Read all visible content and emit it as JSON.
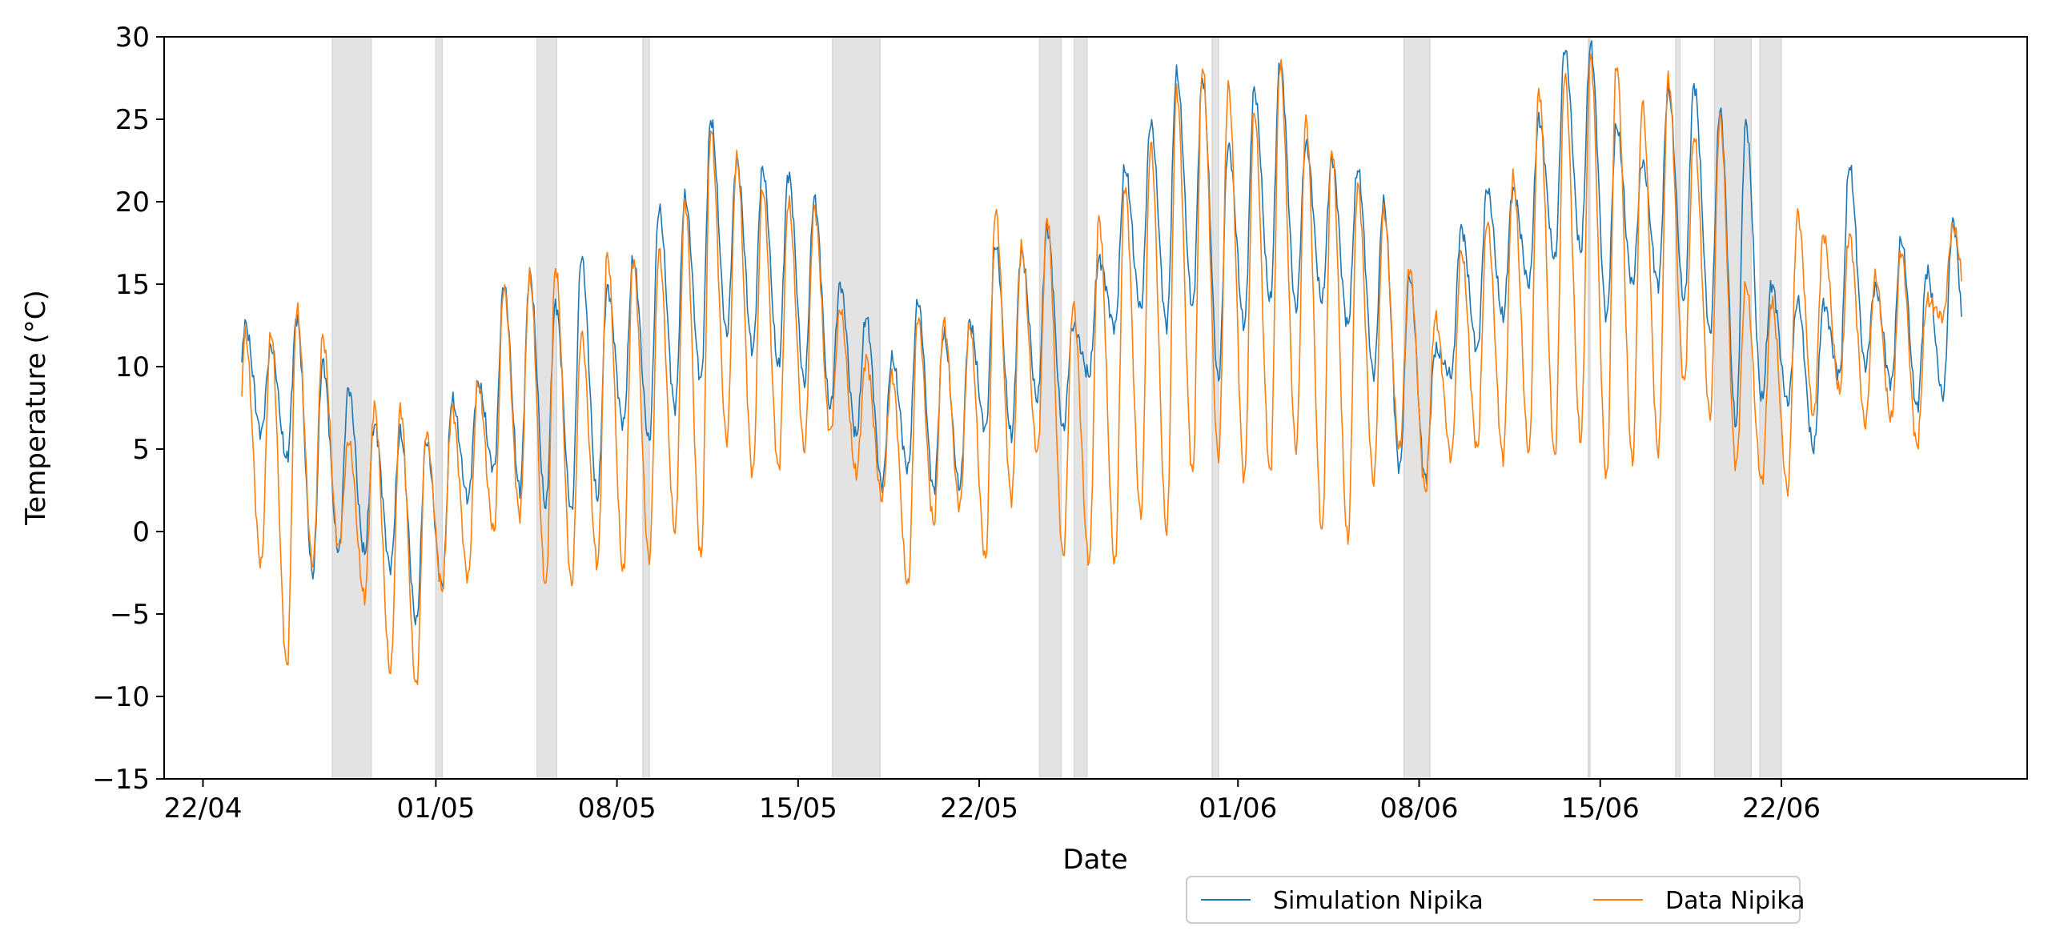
{
  "chart_data": {
    "type": "line",
    "title": "",
    "xlabel": "Date",
    "ylabel": "Temperature (°C)",
    "x_domain": [
      "2022-04-20T12:00",
      "2022-07-01T12:00"
    ],
    "ylim": [
      -15,
      30
    ],
    "y_ticks": [
      -15,
      -10,
      -5,
      0,
      5,
      10,
      15,
      20,
      25,
      30
    ],
    "x_ticks": [
      {
        "date": "2022-04-22",
        "label": "22/04"
      },
      {
        "date": "2022-05-01",
        "label": "01/05"
      },
      {
        "date": "2022-05-08",
        "label": "08/05"
      },
      {
        "date": "2022-05-15",
        "label": "15/05"
      },
      {
        "date": "2022-05-22",
        "label": "22/05"
      },
      {
        "date": "2022-06-01",
        "label": "01/06"
      },
      {
        "date": "2022-06-08",
        "label": "08/06"
      },
      {
        "date": "2022-06-15",
        "label": "15/06"
      },
      {
        "date": "2022-06-22",
        "label": "22/06"
      }
    ],
    "grid": false,
    "legend_position": "bottom-center",
    "shaded_periods": [
      [
        "2022-04-27T00:00",
        "2022-04-28T12:00"
      ],
      [
        "2022-05-01T00:00",
        "2022-05-01T06:00"
      ],
      [
        "2022-05-04T22:00",
        "2022-05-05T16:00"
      ],
      [
        "2022-05-09T00:00",
        "2022-05-09T06:00"
      ],
      [
        "2022-05-16T08:00",
        "2022-05-18T04:00"
      ],
      [
        "2022-05-24T08:00",
        "2022-05-25T04:00"
      ],
      [
        "2022-05-25T16:00",
        "2022-05-26T04:00"
      ],
      [
        "2022-05-31T00:00",
        "2022-05-31T06:00"
      ],
      [
        "2022-06-07T10:00",
        "2022-06-08T10:00"
      ],
      [
        "2022-06-14T13:00",
        "2022-06-14T14:00"
      ],
      [
        "2022-06-17T22:00",
        "2022-06-18T02:00"
      ],
      [
        "2022-06-19T10:00",
        "2022-06-20T20:00"
      ],
      [
        "2022-06-21T04:00",
        "2022-06-22T00:00"
      ]
    ],
    "series": [
      {
        "name": "Simulation Nipika",
        "color": "#1f77b4",
        "x": [
          "2022-04-23",
          "2022-04-24",
          "2022-04-25",
          "2022-04-26",
          "2022-04-27",
          "2022-04-28",
          "2022-04-29",
          "2022-04-30",
          "2022-05-01",
          "2022-05-02",
          "2022-05-03",
          "2022-05-04",
          "2022-05-05",
          "2022-05-06",
          "2022-05-07",
          "2022-05-08",
          "2022-05-09",
          "2022-05-10",
          "2022-05-11",
          "2022-05-12",
          "2022-05-13",
          "2022-05-14",
          "2022-05-15",
          "2022-05-16",
          "2022-05-17",
          "2022-05-18",
          "2022-05-19",
          "2022-05-20",
          "2022-05-21",
          "2022-05-22",
          "2022-05-23",
          "2022-05-24",
          "2022-05-25",
          "2022-05-26",
          "2022-05-27",
          "2022-05-28",
          "2022-05-29",
          "2022-05-30",
          "2022-05-31",
          "2022-06-01",
          "2022-06-02",
          "2022-06-03",
          "2022-06-04",
          "2022-06-05",
          "2022-06-06",
          "2022-06-07",
          "2022-06-08",
          "2022-06-09",
          "2022-06-10",
          "2022-06-11",
          "2022-06-12",
          "2022-06-13",
          "2022-06-14",
          "2022-06-15",
          "2022-06-16",
          "2022-06-17",
          "2022-06-18",
          "2022-06-19",
          "2022-06-20",
          "2022-06-21",
          "2022-06-22",
          "2022-06-23",
          "2022-06-24",
          "2022-06-25",
          "2022-06-26",
          "2022-06-27",
          "2022-06-28"
        ],
        "max": [
          12.6,
          11.2,
          13.0,
          10.3,
          8.7,
          6.5,
          6.0,
          5.5,
          8.0,
          9.0,
          15.0,
          15.6,
          13.8,
          16.7,
          14.8,
          16.5,
          19.6,
          20.3,
          25.0,
          22.5,
          22.0,
          21.7,
          20.2,
          15.0,
          13.0,
          10.5,
          14.0,
          12.0,
          12.7,
          17.4,
          17.0,
          18.4,
          12.5,
          16.5,
          22.0,
          24.8,
          27.8,
          27.5,
          23.4,
          26.8,
          28.5,
          23.5,
          22.6,
          22.0,
          20.0,
          15.5,
          11.0,
          18.4,
          20.8,
          20.7,
          25.0,
          29.3,
          29.5,
          24.6,
          22.4,
          26.8,
          27.1,
          25.6,
          24.8,
          15.0,
          14.0,
          13.8,
          22.2,
          14.8,
          17.7,
          15.8,
          18.8
        ],
        "min": [
          2.2,
          6.0,
          4.4,
          -2.6,
          -1.2,
          -1.3,
          -2.2,
          -5.5,
          -3.3,
          2.0,
          3.8,
          2.5,
          1.5,
          1.2,
          2.0,
          6.5,
          5.5,
          7.5,
          9.2,
          12.0,
          11.0,
          10.0,
          9.0,
          7.5,
          5.8,
          2.8,
          3.8,
          2.5,
          2.7,
          6.2,
          5.8,
          8.0,
          6.2,
          9.5,
          12.4,
          13.5,
          12.5,
          13.6,
          9.2,
          12.5,
          14.0,
          13.5,
          14.0,
          12.5,
          9.5,
          3.8,
          3.2,
          9.5,
          11.0,
          13.0,
          15.0,
          16.5,
          17.0,
          13.0,
          15.0,
          15.0,
          14.0,
          12.0,
          6.5,
          8.0,
          7.8,
          5.0,
          9.5,
          10.0,
          9.0,
          7.5,
          8.2
        ]
      },
      {
        "name": "Data Nipika",
        "color": "#ff7f0e",
        "x": [
          "2022-04-23",
          "2022-04-24",
          "2022-04-25",
          "2022-04-26",
          "2022-04-27",
          "2022-04-28",
          "2022-04-29",
          "2022-04-30",
          "2022-05-01",
          "2022-05-02",
          "2022-05-03",
          "2022-05-04",
          "2022-05-05",
          "2022-05-06",
          "2022-05-07",
          "2022-05-08",
          "2022-05-09",
          "2022-05-10",
          "2022-05-11",
          "2022-05-12",
          "2022-05-13",
          "2022-05-14",
          "2022-05-15",
          "2022-05-16",
          "2022-05-17",
          "2022-05-18",
          "2022-05-19",
          "2022-05-20",
          "2022-05-21",
          "2022-05-22",
          "2022-05-23",
          "2022-05-24",
          "2022-05-25",
          "2022-05-26",
          "2022-05-27",
          "2022-05-28",
          "2022-05-29",
          "2022-05-30",
          "2022-05-31",
          "2022-06-01",
          "2022-06-02",
          "2022-06-03",
          "2022-06-04",
          "2022-06-05",
          "2022-06-06",
          "2022-06-07",
          "2022-06-08",
          "2022-06-09",
          "2022-06-10",
          "2022-06-11",
          "2022-06-12",
          "2022-06-13",
          "2022-06-14",
          "2022-06-15",
          "2022-06-16",
          "2022-06-17",
          "2022-06-18",
          "2022-06-19",
          "2022-06-20",
          "2022-06-21",
          "2022-06-22",
          "2022-06-23",
          "2022-06-24",
          "2022-06-25",
          "2022-06-26",
          "2022-06-27",
          "2022-06-28"
        ],
        "max": [
          12.0,
          12.1,
          13.5,
          11.8,
          5.5,
          7.6,
          7.5,
          6.0,
          7.5,
          9.0,
          14.8,
          15.5,
          16.0,
          12.0,
          16.8,
          16.5,
          17.0,
          20.0,
          24.4,
          22.7,
          20.8,
          20.0,
          19.6,
          13.5,
          10.5,
          9.5,
          13.0,
          12.7,
          12.5,
          19.5,
          17.2,
          19.0,
          13.8,
          19.0,
          21.0,
          23.5,
          26.8,
          28.2,
          27.0,
          25.5,
          28.4,
          25.0,
          23.2,
          21.0,
          19.5,
          16.0,
          13.0,
          17.0,
          18.8,
          21.5,
          26.8,
          27.7,
          28.8,
          28.4,
          26.0,
          27.5,
          24.0,
          25.1,
          15.0,
          14.0,
          19.3,
          18.0,
          18.0,
          15.5,
          17.0,
          14.0,
          18.5
        ],
        "min": [
          -3.5,
          -2.0,
          -8.2,
          -2.0,
          -1.0,
          -4.0,
          -8.5,
          -9.4,
          -3.5,
          -2.8,
          0.0,
          1.0,
          -3.3,
          -3.2,
          -2.0,
          -2.5,
          -1.7,
          0.0,
          -1.6,
          5.5,
          3.5,
          3.8,
          5.0,
          6.0,
          3.5,
          2.0,
          -3.3,
          0.5,
          1.5,
          -1.7,
          2.0,
          4.8,
          -1.5,
          -1.8,
          -2.0,
          1.0,
          0.0,
          3.5,
          4.5,
          3.2,
          3.5,
          5.0,
          0.0,
          -0.5,
          3.0,
          5.0,
          2.5,
          4.5,
          5.0,
          4.5,
          4.8,
          4.5,
          5.5,
          3.2,
          4.2,
          4.8,
          9.0,
          7.0,
          4.0,
          3.0,
          2.5,
          7.0,
          8.5,
          6.5,
          6.8,
          5.2,
          13.0
        ]
      }
    ],
    "legend": [
      {
        "label": "Simulation Nipika",
        "color": "#1f77b4"
      },
      {
        "label": "Data Nipika",
        "color": "#ff7f0e"
      }
    ]
  }
}
